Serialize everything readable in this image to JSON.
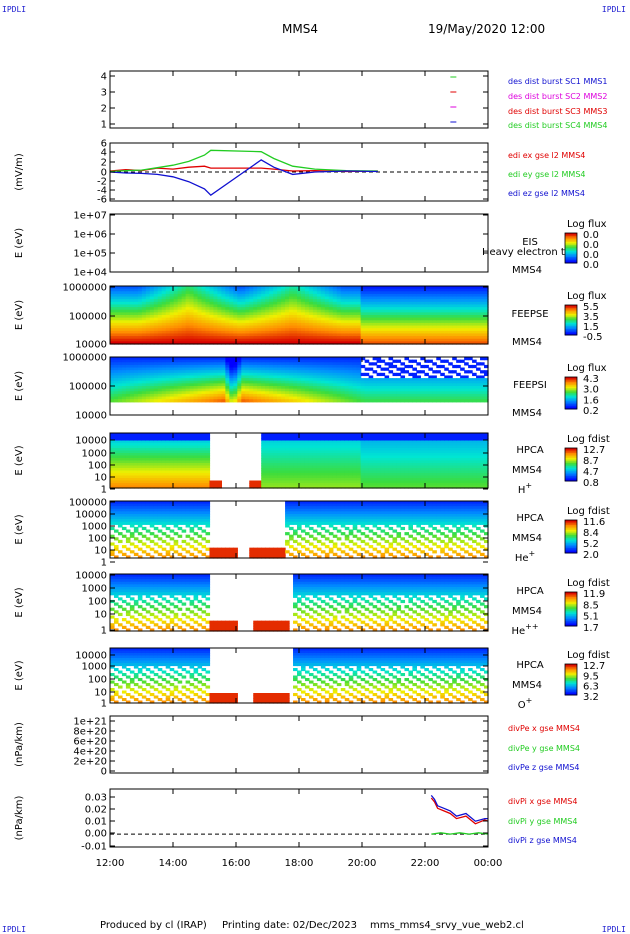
{
  "corner_label": "IPDLI",
  "header": {
    "title": "MMS4",
    "datetime": "19/May/2020 12:00"
  },
  "footer": {
    "produced_by": "Produced by cl (IRAP)",
    "printing_date": "Printing date: 02/Dec/2023",
    "script": "mms_mms4_srvy_vue_web2.cl"
  },
  "colors": {
    "red": "#e00000",
    "green": "#22cc22",
    "blue": "#1010d0",
    "magenta": "#dd00dd"
  },
  "chart_data": [
    {
      "type": "line",
      "panel": "des-dist-burst",
      "yticks": [
        "4",
        "3",
        "2",
        "1"
      ],
      "ylim": [
        0.6,
        4.4
      ],
      "series": [
        {
          "name": "des dist burst SC1 MMS1",
          "color": "#1010d0",
          "x": [
            22.9
          ],
          "y": [
            1.0
          ]
        },
        {
          "name": "des dist burst SC2 MMS2",
          "color": "#dd00dd",
          "x": [
            22.9
          ],
          "y": [
            2.0
          ]
        },
        {
          "name": "des dist burst SC3 MMS3",
          "color": "#e00000",
          "x": [
            22.9
          ],
          "y": [
            3.0
          ]
        },
        {
          "name": "des dist burst SC4 MMS4",
          "color": "#22cc22",
          "x": [
            22.9
          ],
          "y": [
            4.0
          ]
        }
      ]
    },
    {
      "type": "line",
      "panel": "edi-e-gse",
      "ylabel": "(mV/m)",
      "yticks": [
        "6",
        "4",
        "2",
        "0",
        "-2",
        "-4",
        "-6"
      ],
      "ylim": [
        -6,
        6
      ],
      "series": [
        {
          "name": "edi ex gse l2 MMS4",
          "color": "#e00000",
          "x": [
            12.0,
            12.5,
            13.0,
            13.5,
            14.0,
            14.5,
            15.0,
            15.2,
            16.8,
            17.2,
            17.8,
            18.5,
            19.5,
            20.5
          ],
          "y": [
            0.2,
            0.5,
            0.3,
            0.8,
            0.6,
            1.0,
            1.2,
            0.8,
            0.8,
            0.6,
            0.2,
            0.3,
            0.1,
            0.2
          ]
        },
        {
          "name": "edi ey gse l2 MMS4",
          "color": "#22cc22",
          "x": [
            12.0,
            12.5,
            13.0,
            13.5,
            14.0,
            14.5,
            15.0,
            15.2,
            16.8,
            17.2,
            17.8,
            18.5,
            19.5,
            20.5
          ],
          "y": [
            0.1,
            0.3,
            0.4,
            0.9,
            1.4,
            2.2,
            3.5,
            4.5,
            4.2,
            2.8,
            1.2,
            0.6,
            0.3,
            0.2
          ]
        },
        {
          "name": "edi ez gse l2 MMS4",
          "color": "#1010d0",
          "x": [
            12.0,
            12.5,
            13.0,
            13.5,
            14.0,
            14.5,
            15.0,
            15.2,
            16.8,
            17.2,
            17.8,
            18.5,
            19.5,
            20.5
          ],
          "y": [
            0.0,
            -0.2,
            -0.3,
            -0.5,
            -1.0,
            -2.0,
            -3.5,
            -4.8,
            2.5,
            1.0,
            -0.5,
            0.0,
            0.2,
            0.1
          ]
        }
      ]
    },
    {
      "type": "heatmap",
      "panel": "eis",
      "ylabel": "E (eV)",
      "yticks": [
        "1e+07",
        "1e+06",
        "1e+05",
        "1e+04"
      ],
      "label": "EIS",
      "sublabel": "MMS4",
      "overlay_text": "Heavy electron tof",
      "cbar_title": "Log flux",
      "cbar_ticks": [
        "0.0",
        "0.0",
        "0.0",
        "0.0"
      ]
    },
    {
      "type": "heatmap",
      "panel": "feepse",
      "ylabel": "E (eV)",
      "yticks": [
        "1000000",
        "100000",
        "10000"
      ],
      "label": "FEEPSE",
      "sublabel": "MMS4",
      "cbar_title": "Log flux",
      "cbar_ticks": [
        "5.5",
        "3.5",
        "1.5",
        "-0.5"
      ]
    },
    {
      "type": "heatmap",
      "panel": "feepsi",
      "ylabel": "E (eV)",
      "yticks": [
        "1000000",
        "100000",
        "10000"
      ],
      "label": "FEEPSI",
      "sublabel": "MMS4",
      "cbar_title": "Log flux",
      "cbar_ticks": [
        "4.3",
        "3.0",
        "1.6",
        "0.2"
      ]
    },
    {
      "type": "heatmap",
      "panel": "hpca-h",
      "ylabel": "E (eV)",
      "yticks": [
        "10000",
        "1000",
        "100",
        "10",
        "1"
      ],
      "label": "HPCA",
      "sublabel": "MMS4",
      "species": "H",
      "charge": "+",
      "cbar_title": "Log fdist",
      "cbar_ticks": [
        "12.7",
        "8.7",
        "4.7",
        "0.8"
      ]
    },
    {
      "type": "heatmap",
      "panel": "hpca-he",
      "ylabel": "E (eV)",
      "yticks": [
        "100000",
        "10000",
        "1000",
        "100",
        "10",
        "1"
      ],
      "label": "HPCA",
      "sublabel": "MMS4",
      "species": "He",
      "charge": "+",
      "cbar_title": "Log fdist",
      "cbar_ticks": [
        "11.6",
        "8.4",
        "5.2",
        "2.0"
      ]
    },
    {
      "type": "heatmap",
      "panel": "hpca-hepp",
      "ylabel": "E (eV)",
      "yticks": [
        "10000",
        "1000",
        "100",
        "10",
        "1"
      ],
      "label": "HPCA",
      "sublabel": "MMS4",
      "species": "He",
      "charge": "++",
      "cbar_title": "Log fdist",
      "cbar_ticks": [
        "11.9",
        "8.5",
        "5.1",
        "1.7"
      ]
    },
    {
      "type": "heatmap",
      "panel": "hpca-o",
      "ylabel": "E (eV)",
      "yticks": [
        "10000",
        "1000",
        "100",
        "10",
        "1"
      ],
      "label": "HPCA",
      "sublabel": "MMS4",
      "species": "O",
      "charge": "+",
      "cbar_title": "Log fdist",
      "cbar_ticks": [
        "12.7",
        "9.5",
        "6.3",
        "3.2"
      ]
    },
    {
      "type": "line",
      "panel": "divpe",
      "ylabel": "(nPa/km)",
      "yticks": [
        "1e+21",
        "8e+20",
        "6e+20",
        "4e+20",
        "2e+20",
        "0"
      ],
      "ylim": [
        0,
        1e+21
      ],
      "series": [
        {
          "name": "divPe x gse MMS4",
          "color": "#e00000",
          "x": [],
          "y": []
        },
        {
          "name": "divPe y gse MMS4",
          "color": "#22cc22",
          "x": [],
          "y": []
        },
        {
          "name": "divPe z gse MMS4",
          "color": "#1010d0",
          "x": [],
          "y": []
        }
      ]
    },
    {
      "type": "line",
      "panel": "divpi",
      "ylabel": "(nPa/km)",
      "yticks": [
        "0.03",
        "0.02",
        "0.01",
        "0.00",
        "-0.01"
      ],
      "ylim": [
        -0.01,
        0.035
      ],
      "series": [
        {
          "name": "divPi x gse MMS4",
          "color": "#e00000",
          "x": [
            22.2,
            22.3,
            22.4,
            22.6,
            22.8,
            23.0,
            23.3,
            23.6,
            23.9,
            24.0
          ],
          "y": [
            0.028,
            0.025,
            0.02,
            0.018,
            0.016,
            0.012,
            0.014,
            0.008,
            0.011,
            0.01
          ]
        },
        {
          "name": "divPi y gse MMS4",
          "color": "#22cc22",
          "x": [
            22.2,
            22.5,
            22.8,
            23.1,
            23.4,
            23.7,
            24.0
          ],
          "y": [
            0.0,
            0.001,
            0.0,
            0.001,
            0.0,
            0.001,
            0.0
          ]
        },
        {
          "name": "divPi z gse MMS4",
          "color": "#1010d0",
          "x": [
            22.2,
            22.3,
            22.4,
            22.6,
            22.8,
            23.0,
            23.3,
            23.6,
            23.9,
            24.0
          ],
          "y": [
            0.03,
            0.027,
            0.022,
            0.02,
            0.018,
            0.014,
            0.016,
            0.01,
            0.012,
            0.012
          ]
        }
      ]
    }
  ],
  "time_axis": {
    "range_hours": [
      12,
      24
    ],
    "ticks": [
      "12:00",
      "14:00",
      "16:00",
      "18:00",
      "20:00",
      "22:00",
      "00:00"
    ]
  }
}
